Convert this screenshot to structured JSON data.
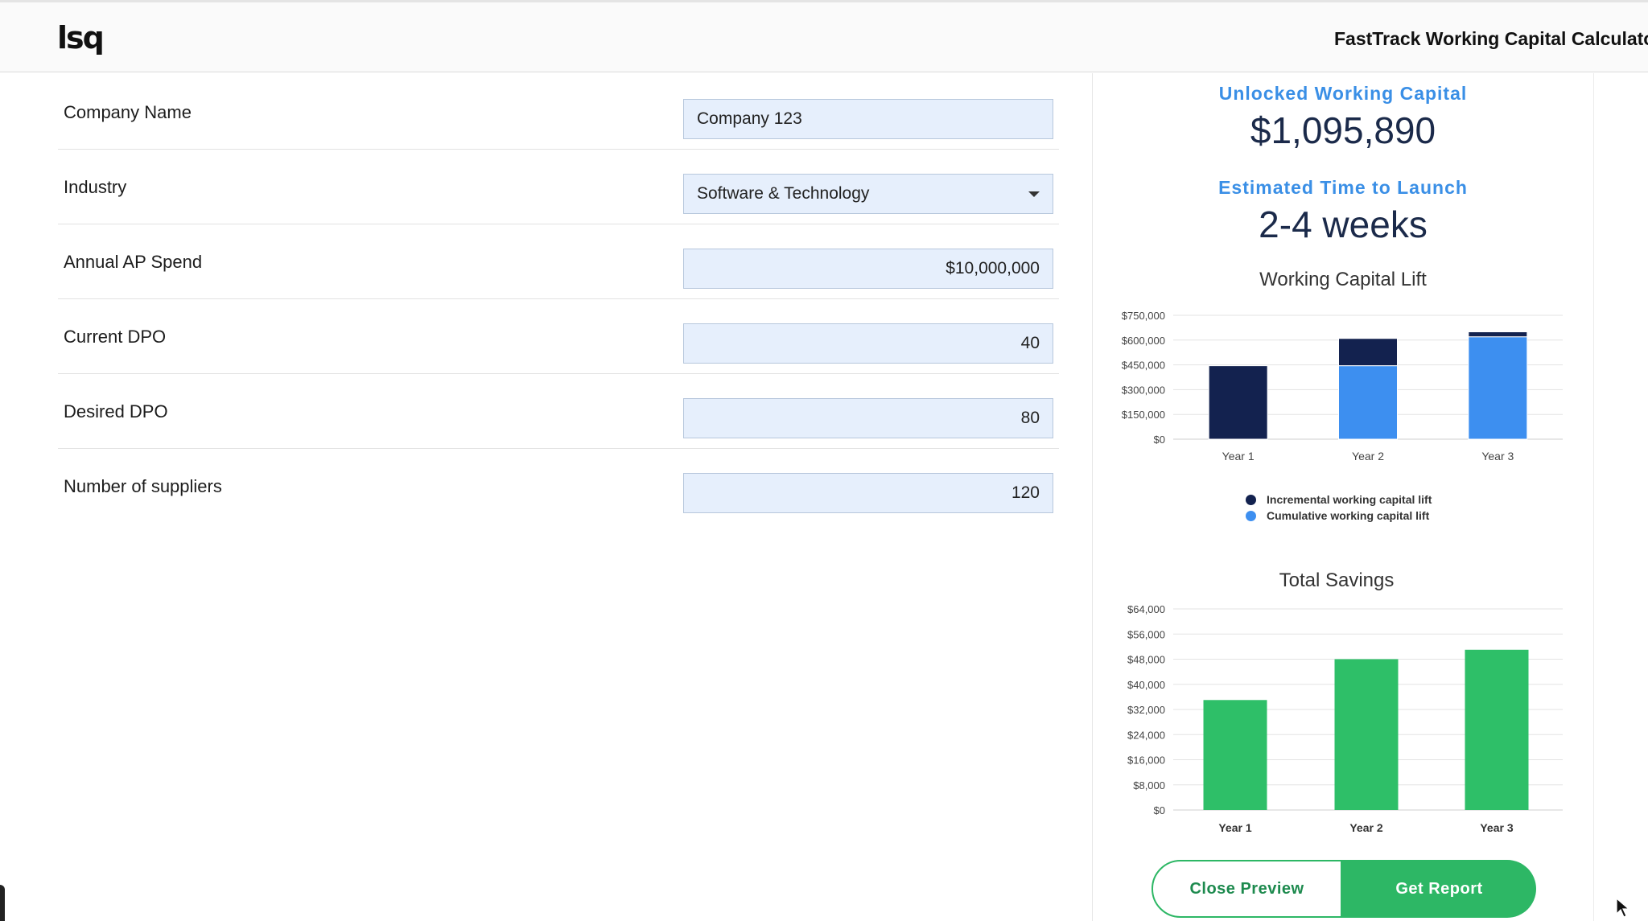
{
  "header": {
    "logo_text": "lsq",
    "app_title": "FastTrack Working Capital Calculator"
  },
  "form": {
    "fields": [
      {
        "label": "Company Name",
        "value": "Company 123",
        "type": "text"
      },
      {
        "label": "Industry",
        "value": "Software & Technology",
        "type": "select"
      },
      {
        "label": "Annual AP Spend",
        "value": "$10,000,000",
        "type": "number"
      },
      {
        "label": "Current DPO",
        "value": "40",
        "type": "number"
      },
      {
        "label": "Desired DPO",
        "value": "80",
        "type": "number"
      },
      {
        "label": "Number of suppliers",
        "value": "120",
        "type": "number"
      }
    ]
  },
  "results": {
    "unlocked_label": "Unlocked Working Capital",
    "unlocked_value": "$1,095,890",
    "time_label": "Estimated Time to Launch",
    "time_value": "2-4 weeks"
  },
  "colors": {
    "incremental": "#13224f",
    "cumulative": "#3d8ff0",
    "savings": "#2ebf68",
    "accent_blue": "#3a8fe6",
    "button_green": "#2db765"
  },
  "chart_data": [
    {
      "type": "bar",
      "stacked": true,
      "title": "Working Capital Lift",
      "categories": [
        "Year 1",
        "Year 2",
        "Year 3"
      ],
      "series": [
        {
          "name": "Cumulative working capital lift",
          "values": [
            0,
            445000,
            620000
          ]
        },
        {
          "name": "Incremental working capital lift",
          "values": [
            445000,
            165000,
            30000
          ]
        }
      ],
      "ylim": [
        0,
        750000
      ],
      "yticks": [
        "$0",
        "$150,000",
        "$300,000",
        "$450,000",
        "$600,000",
        "$750,000"
      ],
      "ytick_values": [
        0,
        150000,
        300000,
        450000,
        600000,
        750000
      ],
      "grid": true,
      "legend": "bottom"
    },
    {
      "type": "bar",
      "title": "Total Savings",
      "categories": [
        "Year 1",
        "Year 2",
        "Year 3"
      ],
      "values": [
        35000,
        48000,
        51000
      ],
      "ylim": [
        0,
        64000
      ],
      "yticks": [
        "$0",
        "$8,000",
        "$16,000",
        "$24,000",
        "$32,000",
        "$40,000",
        "$48,000",
        "$56,000",
        "$64,000"
      ],
      "ytick_values": [
        0,
        8000,
        16000,
        24000,
        32000,
        40000,
        48000,
        56000,
        64000
      ],
      "grid": true
    }
  ],
  "buttons": {
    "close_label": "Close Preview",
    "report_label": "Get Report"
  }
}
